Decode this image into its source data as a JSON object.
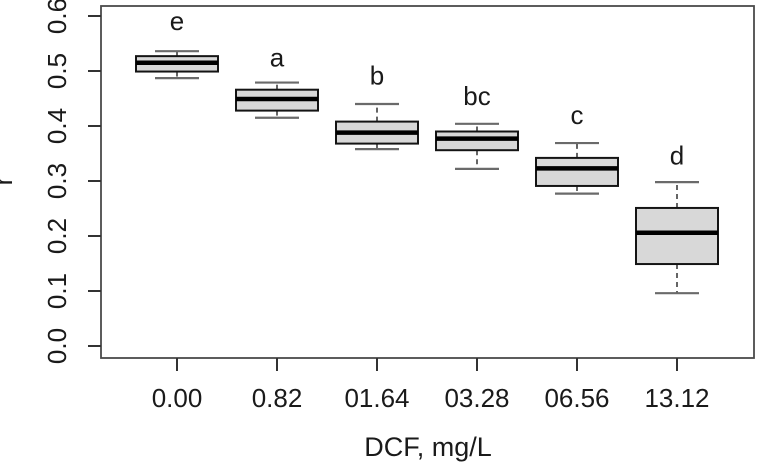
{
  "figure": {
    "background": "#ffffff"
  },
  "chart_data": {
    "type": "boxplot",
    "title": "",
    "xlabel": "DCF, mg/L",
    "ylabel": "r",
    "categories": [
      "0.00",
      "0.82",
      "01.64",
      "03.28",
      "06.56",
      "13.12"
    ],
    "significance_letters": [
      "e",
      "a",
      "b",
      "bc",
      "c",
      "d"
    ],
    "y_ticks": [
      {
        "label": "0.0",
        "value": 0.0
      },
      {
        "label": "0.1",
        "value": 0.1
      },
      {
        "label": "0.2",
        "value": 0.2
      },
      {
        "label": "0.3",
        "value": 0.3
      },
      {
        "label": "0.4",
        "value": 0.4
      },
      {
        "label": "0.5",
        "value": 0.5
      },
      {
        "label": "0.6",
        "value": 0.6
      }
    ],
    "ylim": [
      0.0,
      0.6
    ],
    "grid": false,
    "legend": null,
    "boxes": [
      {
        "category": "0.00",
        "letter": "e",
        "whisker_low": 0.487,
        "q1": 0.499,
        "median": 0.515,
        "q3": 0.527,
        "whisker_high": 0.536,
        "letter_y": 0.591
      },
      {
        "category": "0.82",
        "letter": "a",
        "whisker_low": 0.415,
        "q1": 0.428,
        "median": 0.449,
        "q3": 0.466,
        "whisker_high": 0.479,
        "letter_y": 0.525
      },
      {
        "category": "01.64",
        "letter": "b",
        "whisker_low": 0.358,
        "q1": 0.368,
        "median": 0.388,
        "q3": 0.408,
        "whisker_high": 0.44,
        "letter_y": 0.492
      },
      {
        "category": "03.28",
        "letter": "bc",
        "whisker_low": 0.322,
        "q1": 0.356,
        "median": 0.377,
        "q3": 0.39,
        "whisker_high": 0.404,
        "letter_y": 0.455
      },
      {
        "category": "06.56",
        "letter": "c",
        "whisker_low": 0.277,
        "q1": 0.291,
        "median": 0.323,
        "q3": 0.342,
        "whisker_high": 0.369,
        "letter_y": 0.42
      },
      {
        "category": "13.12",
        "letter": "d",
        "whisker_low": 0.096,
        "q1": 0.149,
        "median": 0.206,
        "q3": 0.251,
        "whisker_high": 0.298,
        "letter_y": 0.347
      }
    ],
    "colors": {
      "box_fill": "#d8d8d8",
      "box_border": "#141414",
      "median": "#000000",
      "whisker": "#3f3f3f",
      "cap": "#6a6a6a",
      "axis": "#4a4a4a",
      "tick": "#333333",
      "text": "#1a1a1a",
      "background": "#ffffff"
    }
  }
}
